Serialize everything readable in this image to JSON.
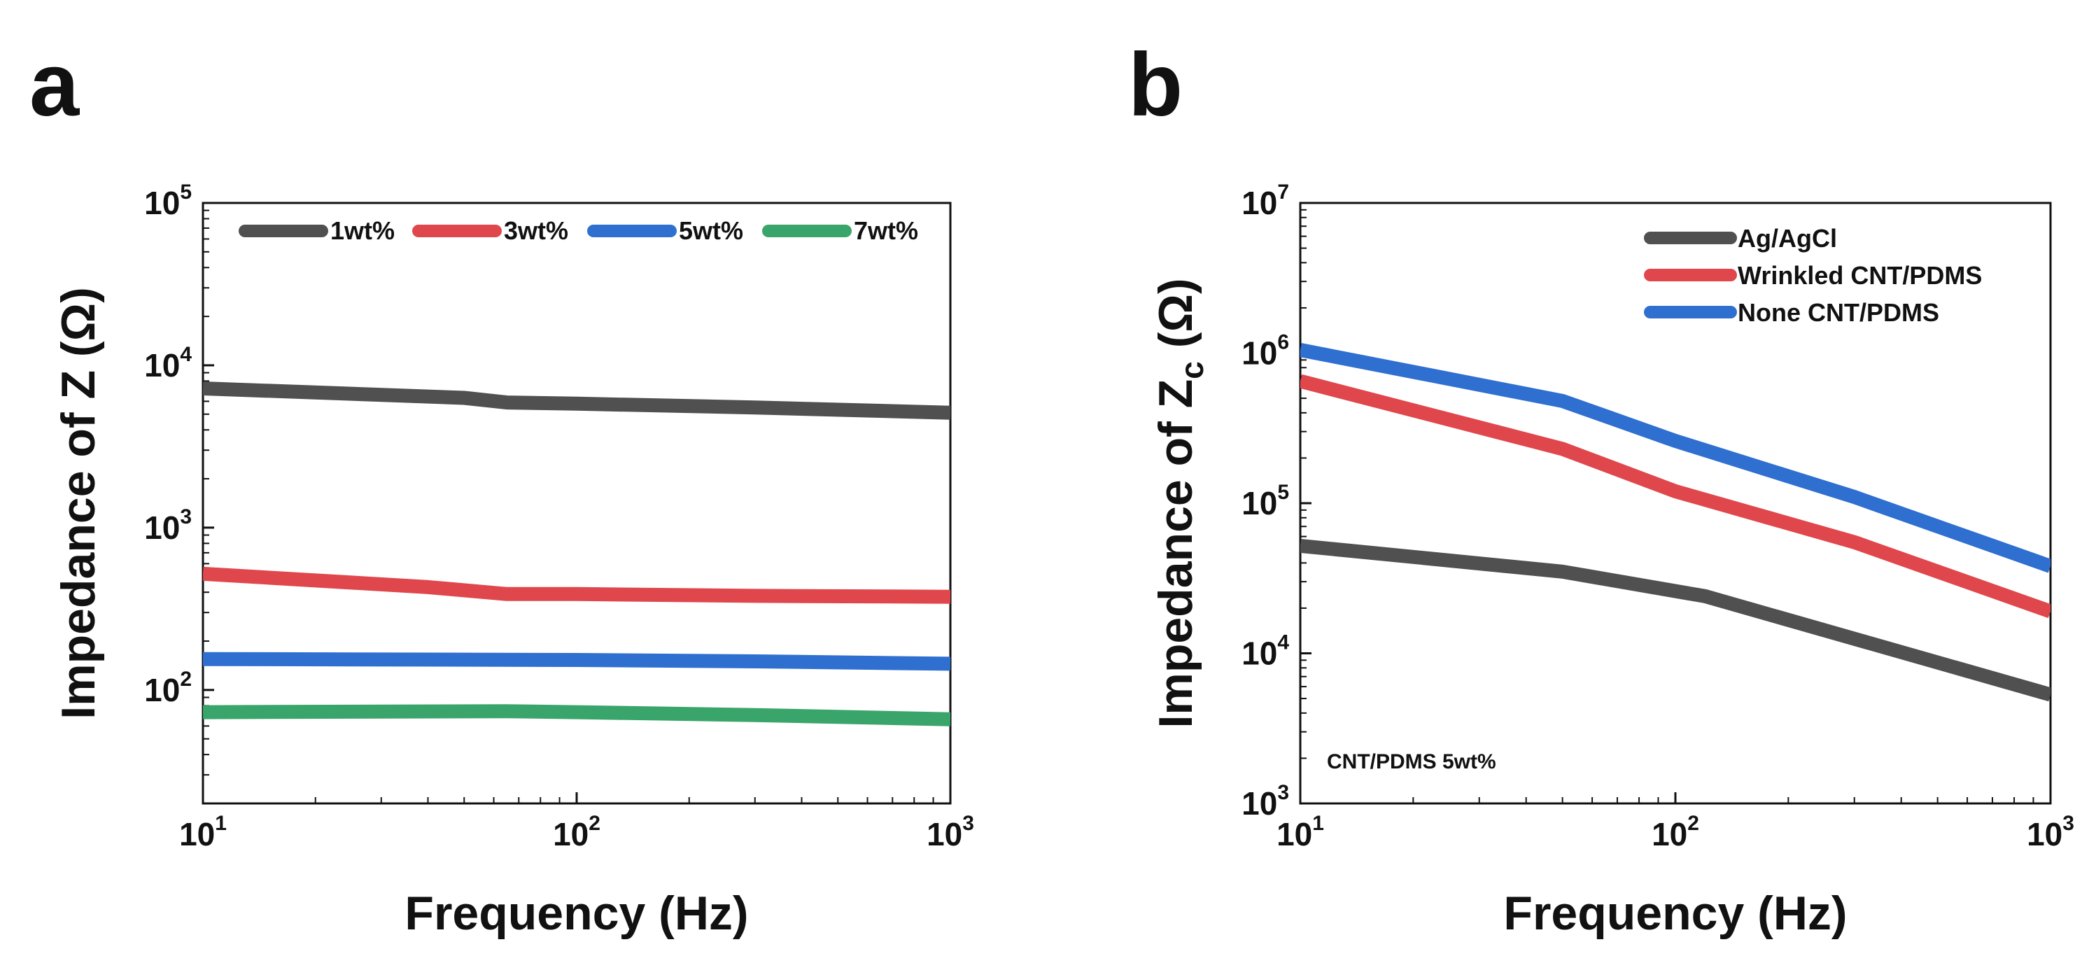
{
  "chart_data": [
    {
      "panel": "a",
      "type": "line",
      "xscale": "log",
      "yscale": "log",
      "xlim": [
        10,
        1000
      ],
      "ylim": [
        20,
        100000
      ],
      "xlabel": "Frequency (Hz)",
      "ylabel": "Impedance of Z (Ω)",
      "ylabel_parts": {
        "pre": "Impedance of Z ",
        "sub": "",
        "post": "(Ω)"
      },
      "xticks": [
        {
          "base": "10",
          "exp": "1",
          "value": 10
        },
        {
          "base": "10",
          "exp": "2",
          "value": 100
        },
        {
          "base": "10",
          "exp": "3",
          "value": 1000
        }
      ],
      "yticks": [
        {
          "base": "10",
          "exp": "2",
          "value": 100
        },
        {
          "base": "10",
          "exp": "3",
          "value": 1000
        },
        {
          "base": "10",
          "exp": "4",
          "value": 10000
        },
        {
          "base": "10",
          "exp": "5",
          "value": 100000
        }
      ],
      "legend_position": "top (single row)",
      "annotation": "",
      "series": [
        {
          "name": "1wt%",
          "color": "#505050",
          "x": [
            10,
            50,
            65,
            100,
            300,
            1000
          ],
          "y": [
            7200,
            6300,
            5900,
            5800,
            5500,
            5100
          ]
        },
        {
          "name": "3wt%",
          "color": "#e0474c",
          "x": [
            10,
            40,
            65,
            100,
            300,
            1000
          ],
          "y": [
            520,
            430,
            390,
            390,
            380,
            375
          ]
        },
        {
          "name": "5wt%",
          "color": "#2f6fd0",
          "x": [
            10,
            100,
            300,
            1000
          ],
          "y": [
            155,
            153,
            150,
            145
          ]
        },
        {
          "name": "7wt%",
          "color": "#3aa56a",
          "x": [
            10,
            65,
            100,
            300,
            1000
          ],
          "y": [
            73,
            74,
            73,
            70,
            66
          ]
        }
      ]
    },
    {
      "panel": "b",
      "type": "line",
      "xscale": "log",
      "yscale": "log",
      "xlim": [
        10,
        1000
      ],
      "ylim": [
        1000,
        10000000
      ],
      "xlabel": "Frequency (Hz)",
      "ylabel": "Impedance of Zc (Ω)",
      "ylabel_parts": {
        "pre": "Impedance of Z",
        "sub": "c",
        "post": " (Ω)"
      },
      "xticks": [
        {
          "base": "10",
          "exp": "1",
          "value": 10
        },
        {
          "base": "10",
          "exp": "2",
          "value": 100
        },
        {
          "base": "10",
          "exp": "3",
          "value": 1000
        }
      ],
      "yticks": [
        {
          "base": "10",
          "exp": "3",
          "value": 1000
        },
        {
          "base": "10",
          "exp": "4",
          "value": 10000
        },
        {
          "base": "10",
          "exp": "5",
          "value": 100000
        },
        {
          "base": "10",
          "exp": "6",
          "value": 1000000
        },
        {
          "base": "10",
          "exp": "7",
          "value": 10000000
        }
      ],
      "legend_position": "top-right",
      "annotation": "CNT/PDMS 5wt%",
      "series": [
        {
          "name": "Ag/AgCl",
          "color": "#505050",
          "x": [
            10,
            50,
            120,
            300,
            1000
          ],
          "y": [
            52000,
            35000,
            24000,
            12500,
            5300
          ]
        },
        {
          "name": "Wrinkled CNT/PDMS",
          "color": "#e0474c",
          "x": [
            10,
            50,
            100,
            300,
            1000
          ],
          "y": [
            650000,
            230000,
            120000,
            55000,
            19000
          ]
        },
        {
          "name": "None CNT/PDMS",
          "color": "#2f6fd0",
          "x": [
            10,
            50,
            100,
            300,
            1000
          ],
          "y": [
            1050000,
            480000,
            260000,
            110000,
            38000
          ]
        }
      ]
    }
  ]
}
